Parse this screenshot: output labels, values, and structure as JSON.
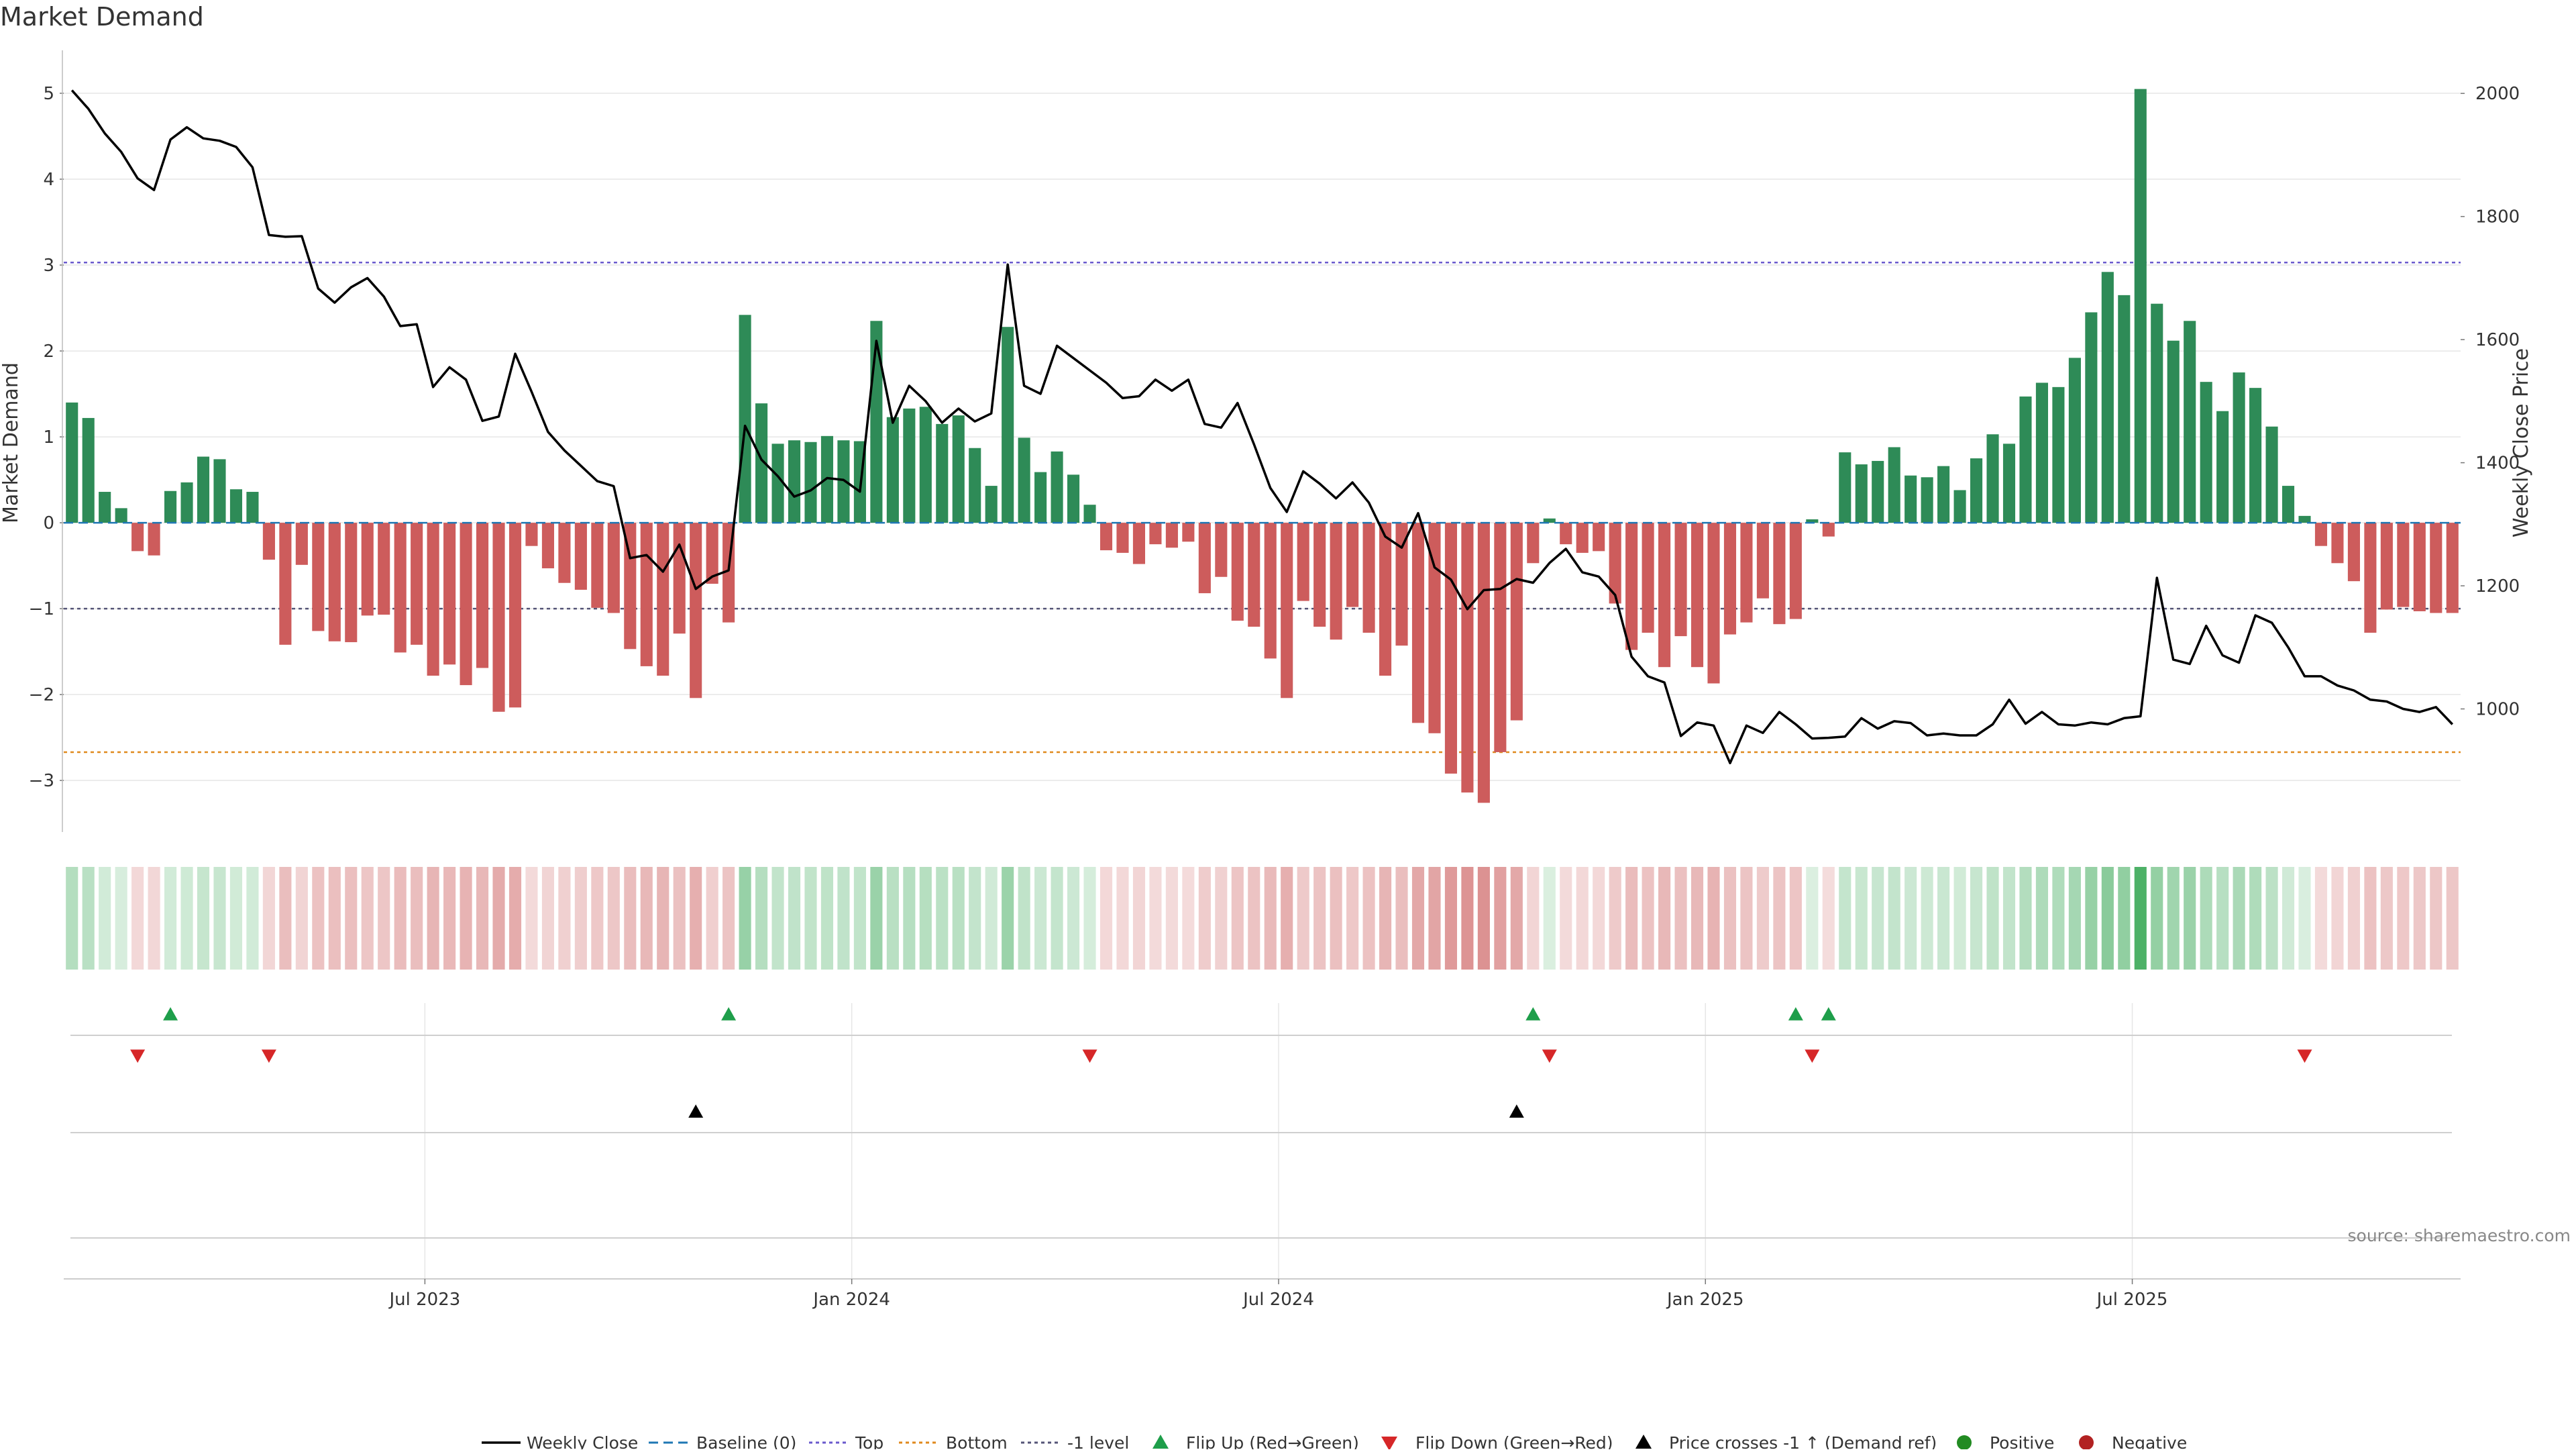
{
  "chart_data": {
    "type": "bar",
    "title": "Market Demand",
    "ylabel_left": "Market Demand",
    "ylabel_right": "Weekly Close Price",
    "ylim_left": [
      -3.6,
      5.5
    ],
    "ylim_right": [
      800,
      2070
    ],
    "yticks_left": [
      "5",
      "4",
      "3",
      "2",
      "1",
      "0",
      "−1",
      "−2",
      "−3"
    ],
    "yticks_left_values": [
      5,
      4,
      3,
      2,
      1,
      0,
      -1,
      -2,
      -3
    ],
    "yticks_right": [
      "2000",
      "1800",
      "1600",
      "1400",
      "1200",
      "1000"
    ],
    "yticks_right_values": [
      2000,
      1800,
      1600,
      1400,
      1200,
      1000
    ],
    "xticks": [
      "Jul 2023",
      "Jan 2024",
      "Jul 2024",
      "Jan 2025",
      "Jul 2025"
    ],
    "xtick_week_index": [
      22,
      48,
      74,
      100,
      126
    ],
    "reference_lines": {
      "top": 3.03,
      "bottom": -2.67,
      "minus_one": -1.0,
      "baseline": 0
    },
    "colors": {
      "positive": "#2e8b57",
      "negative": "#cd5c5c",
      "price": "#000000",
      "top_line": "#6a5acd",
      "bottom_line": "#e08a1e",
      "minus_one_line": "#555577",
      "baseline_line": "#1f77b4",
      "flip_up": "#1e9e4a",
      "flip_down": "#d62728",
      "cross": "#000000",
      "positive_dot": "#228b22",
      "negative_dot": "#b22222",
      "grid": "#e6e6e6"
    },
    "series": [
      {
        "name": "Market Demand",
        "values": [
          1.4,
          1.22,
          0.36,
          0.17,
          -0.33,
          -0.38,
          0.37,
          0.47,
          0.77,
          0.74,
          0.39,
          0.36,
          -0.43,
          -1.42,
          -0.49,
          -1.26,
          -1.38,
          -1.39,
          -1.08,
          -1.07,
          -1.51,
          -1.42,
          -1.78,
          -1.65,
          -1.89,
          -1.69,
          -2.2,
          -2.15,
          -0.27,
          -0.53,
          -0.7,
          -0.78,
          -0.99,
          -1.05,
          -1.47,
          -1.67,
          -1.78,
          -1.29,
          -2.04,
          -0.71,
          -1.16,
          2.42,
          1.39,
          0.92,
          0.96,
          0.94,
          1.01,
          0.96,
          0.95,
          2.35,
          1.23,
          1.33,
          1.35,
          1.15,
          1.25,
          0.87,
          0.43,
          2.28,
          0.99,
          0.59,
          0.83,
          0.56,
          0.21,
          -0.32,
          -0.35,
          -0.48,
          -0.25,
          -0.29,
          -0.22,
          -0.82,
          -0.63,
          -1.14,
          -1.21,
          -1.58,
          -2.04,
          -0.91,
          -1.21,
          -1.36,
          -0.98,
          -1.28,
          -1.78,
          -1.43,
          -2.33,
          -2.45,
          -2.92,
          -3.14,
          -3.26,
          -2.67,
          -2.3,
          -0.47,
          0.05,
          -0.25,
          -0.35,
          -0.33,
          -0.94,
          -1.48,
          -1.28,
          -1.68,
          -1.32,
          -1.68,
          -1.87,
          -1.3,
          -1.16,
          -0.88,
          -1.18,
          -1.12,
          0.04,
          -0.16,
          0.82,
          0.68,
          0.72,
          0.88,
          0.55,
          0.53,
          0.66,
          0.38,
          0.75,
          1.03,
          0.92,
          1.47,
          1.63,
          1.58,
          1.92,
          2.45,
          2.92,
          2.65,
          5.05,
          2.55,
          2.12,
          2.35,
          1.64,
          1.3,
          1.75,
          1.57,
          1.12,
          0.43,
          0.08,
          -0.27,
          -0.47,
          -0.68,
          -1.28,
          -1.01,
          -0.98,
          -1.03,
          -1.05,
          -1.05
        ]
      },
      {
        "name": "Weekly Close",
        "values": [
          2005,
          1975,
          1935,
          1905,
          1862,
          1843,
          1925,
          1945,
          1927,
          1923,
          1913,
          1880,
          1770,
          1767,
          1768,
          1683,
          1660,
          1685,
          1700,
          1670,
          1622,
          1625,
          1523,
          1555,
          1535,
          1468,
          1475,
          1577,
          1515,
          1450,
          1420,
          1395,
          1370,
          1362,
          1245,
          1250,
          1223,
          1267,
          1195,
          1215,
          1225,
          1460,
          1405,
          1378,
          1345,
          1355,
          1375,
          1372,
          1353,
          1598,
          1465,
          1525,
          1500,
          1465,
          1488,
          1467,
          1480,
          1722,
          1525,
          1512,
          1590,
          1570,
          1550,
          1530,
          1505,
          1508,
          1535,
          1517,
          1535,
          1463,
          1457,
          1497,
          1430,
          1359,
          1320,
          1386,
          1366,
          1342,
          1368,
          1335,
          1280,
          1262,
          1318,
          1230,
          1210,
          1162,
          1193,
          1195,
          1211,
          1205,
          1237,
          1260,
          1222,
          1215,
          1185,
          1085,
          1053,
          1043,
          956,
          978,
          973,
          912,
          973,
          961,
          995,
          975,
          952,
          953,
          955,
          985,
          968,
          980,
          977,
          957,
          960,
          957,
          957,
          975,
          1015,
          976,
          995,
          975,
          973,
          978,
          975,
          985,
          988,
          1213,
          1080,
          1073,
          1135,
          1087,
          1075,
          1152,
          1140,
          1100,
          1053,
          1053,
          1038,
          1030,
          1015,
          1012,
          1000,
          995,
          1003,
          975
        ]
      }
    ],
    "flip_up_weeks": [
      6,
      40,
      89,
      105,
      107
    ],
    "flip_down_weeks": [
      4,
      12,
      62,
      90,
      106,
      136
    ],
    "cross_weeks": [
      38,
      88
    ],
    "legend": [
      "Weekly Close",
      "Baseline (0)",
      "Top",
      "Bottom",
      "-1 level",
      "Flip Up (Red→Green)",
      "Flip Down (Green→Red)",
      "Price crosses -1 ↑ (Demand ref)",
      "Positive",
      "Negative"
    ],
    "source": "source: sharemaestro.com"
  }
}
